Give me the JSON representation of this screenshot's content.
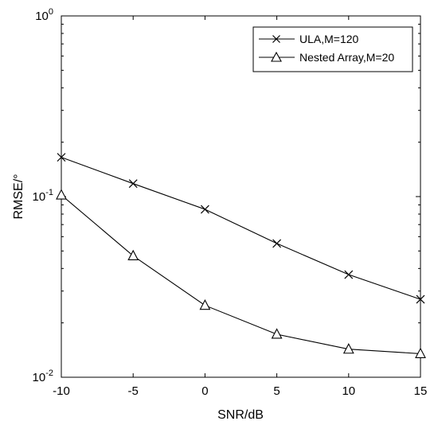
{
  "chart_data": {
    "type": "line",
    "title": "",
    "xlabel": "SNR/dB",
    "ylabel": "RMSE/°",
    "x": [
      -10,
      -5,
      0,
      5,
      10,
      15
    ],
    "xlim": [
      -10,
      15
    ],
    "ylim": [
      0.01,
      1
    ],
    "yscale": "log",
    "xticks": [
      "-10",
      "-5",
      "0",
      "5",
      "10",
      "15"
    ],
    "yticks": [
      {
        "base": "10",
        "exp": "-2",
        "value": 0.01
      },
      {
        "base": "10",
        "exp": "-1",
        "value": 0.1
      },
      {
        "base": "10",
        "exp": "0",
        "value": 1
      }
    ],
    "grid": false,
    "legend_position": "top-right",
    "series": [
      {
        "name": "ULA,M=120",
        "marker": "x",
        "values": [
          0.165,
          0.118,
          0.085,
          0.055,
          0.037,
          0.027
        ]
      },
      {
        "name": "Nested Array,M=20",
        "marker": "triangle",
        "values": [
          0.102,
          0.047,
          0.025,
          0.0173,
          0.0143,
          0.0135
        ]
      }
    ],
    "color": "#000000"
  }
}
